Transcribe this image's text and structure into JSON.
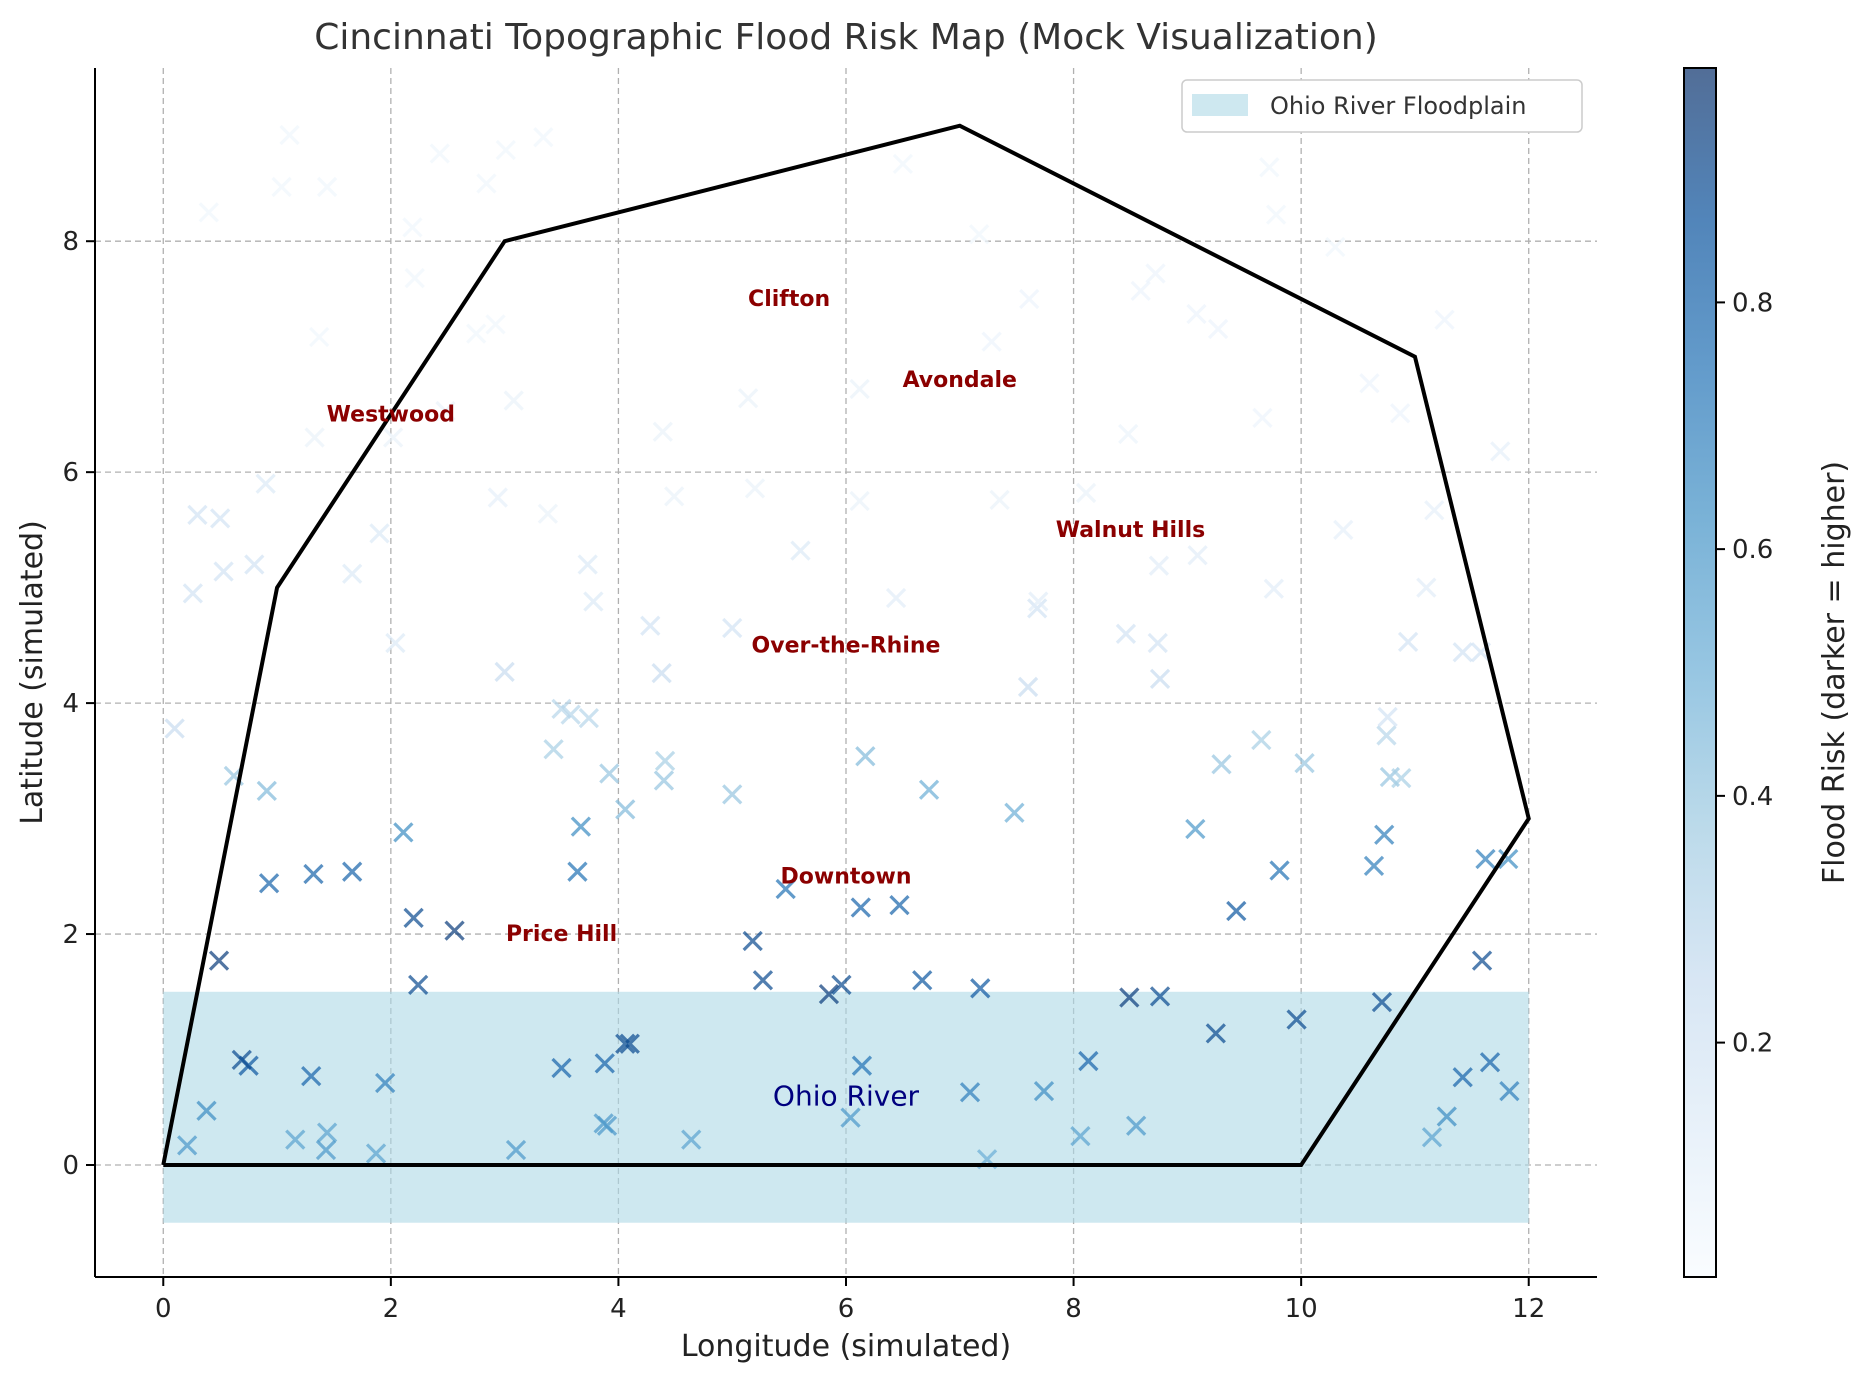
{
  "chart_data": {
    "type": "scatter",
    "title": "Cincinnati Topographic Flood Risk Map (Mock Visualization)",
    "xlabel": "Longitude (simulated)",
    "ylabel": "Latitude (simulated)",
    "xlim": [
      -0.6,
      12.6
    ],
    "ylim": [
      -0.97,
      9.5
    ],
    "xticks": [
      0,
      2,
      4,
      6,
      8,
      10,
      12
    ],
    "yticks": [
      0,
      2,
      4,
      6,
      8
    ],
    "grid": true,
    "legend": {
      "placement": "top-right",
      "entries": [
        {
          "label": "Ohio River Floodplain",
          "color": "#add8e6"
        }
      ]
    },
    "floodplain": {
      "label": "Ohio River Floodplain",
      "x": [
        0,
        12
      ],
      "y": [
        -0.5,
        1.5
      ],
      "color": "#add8e6"
    },
    "boundary": [
      [
        0,
        0
      ],
      [
        1,
        5
      ],
      [
        3,
        8
      ],
      [
        7,
        9
      ],
      [
        11,
        7
      ],
      [
        12,
        3
      ],
      [
        10,
        0
      ],
      [
        0,
        0
      ]
    ],
    "river_label": {
      "text": "Ohio River",
      "x": 6,
      "y": 0.6
    },
    "neighborhoods": [
      {
        "name": "Clifton",
        "x": 5.5,
        "y": 7.5
      },
      {
        "name": "Avondale",
        "x": 7,
        "y": 6.8
      },
      {
        "name": "Westwood",
        "x": 2,
        "y": 6.5
      },
      {
        "name": "Walnut Hills",
        "x": 8.5,
        "y": 5.5
      },
      {
        "name": "Over-the-Rhine",
        "x": 6,
        "y": 4.5
      },
      {
        "name": "Downtown",
        "x": 6,
        "y": 2.5
      },
      {
        "name": "Price Hill",
        "x": 3.5,
        "y": 2
      }
    ],
    "colorbar": {
      "label": "Flood Risk (darker = higher)",
      "range": [
        0.01,
        0.99
      ],
      "ticks": [
        0.2,
        0.4,
        0.6,
        0.8
      ],
      "colormap": "Blues",
      "alpha": 0.7
    },
    "points": [
      [
        0.21,
        0.17,
        0.6
      ],
      [
        0.38,
        0.47,
        0.65
      ],
      [
        0.75,
        0.86,
        0.85
      ],
      [
        0.69,
        0.91,
        0.9
      ],
      [
        1.3,
        0.77,
        0.8
      ],
      [
        1.16,
        0.22,
        0.55
      ],
      [
        1.44,
        0.28,
        0.55
      ],
      [
        1.43,
        0.13,
        0.6
      ],
      [
        1.87,
        0.1,
        0.55
      ],
      [
        1.95,
        0.71,
        0.7
      ],
      [
        3.1,
        0.13,
        0.6
      ],
      [
        3.5,
        0.84,
        0.8
      ],
      [
        3.88,
        0.88,
        0.8
      ],
      [
        3.87,
        0.36,
        0.6
      ],
      [
        3.9,
        0.34,
        0.6
      ],
      [
        4.06,
        1.05,
        0.9
      ],
      [
        4.1,
        1.05,
        0.9
      ],
      [
        4.64,
        0.22,
        0.55
      ],
      [
        6.04,
        0.41,
        0.6
      ],
      [
        6.14,
        0.86,
        0.75
      ],
      [
        5.85,
        1.48,
        0.95
      ],
      [
        5.96,
        1.56,
        0.9
      ],
      [
        5.27,
        1.6,
        0.9
      ],
      [
        5.18,
        1.94,
        0.9
      ],
      [
        5.47,
        2.39,
        0.75
      ],
      [
        6.13,
        2.23,
        0.8
      ],
      [
        6.47,
        2.25,
        0.8
      ],
      [
        6.67,
        1.6,
        0.85
      ],
      [
        7.18,
        1.53,
        0.85
      ],
      [
        7.09,
        0.63,
        0.7
      ],
      [
        7.24,
        0.05,
        0.5
      ],
      [
        7.74,
        0.64,
        0.65
      ],
      [
        8.06,
        0.25,
        0.55
      ],
      [
        8.13,
        0.9,
        0.8
      ],
      [
        8.49,
        1.45,
        0.95
      ],
      [
        8.55,
        0.34,
        0.6
      ],
      [
        8.76,
        1.46,
        0.9
      ],
      [
        9.25,
        1.14,
        0.9
      ],
      [
        9.43,
        2.2,
        0.85
      ],
      [
        9.07,
        2.91,
        0.6
      ],
      [
        9.81,
        2.55,
        0.75
      ],
      [
        9.96,
        1.26,
        0.9
      ],
      [
        10.71,
        1.41,
        0.9
      ],
      [
        10.64,
        2.59,
        0.7
      ],
      [
        10.73,
        2.86,
        0.7
      ],
      [
        11.15,
        0.24,
        0.55
      ],
      [
        11.28,
        0.42,
        0.65
      ],
      [
        11.42,
        0.76,
        0.8
      ],
      [
        11.66,
        0.89,
        0.8
      ],
      [
        11.83,
        0.64,
        0.7
      ],
      [
        11.59,
        1.77,
        0.9
      ],
      [
        11.62,
        2.65,
        0.7
      ],
      [
        11.82,
        2.65,
        0.65
      ],
      [
        0.49,
        1.77,
        0.95
      ],
      [
        0.93,
        2.44,
        0.8
      ],
      [
        1.32,
        2.52,
        0.8
      ],
      [
        1.66,
        2.54,
        0.8
      ],
      [
        2.2,
        2.14,
        0.9
      ],
      [
        2.24,
        1.56,
        0.9
      ],
      [
        2.56,
        2.03,
        0.95
      ],
      [
        2.11,
        2.88,
        0.65
      ],
      [
        3.64,
        2.54,
        0.75
      ],
      [
        3.67,
        2.93,
        0.65
      ],
      [
        0.62,
        3.37,
        0.4
      ],
      [
        0.91,
        3.24,
        0.45
      ],
      [
        3.92,
        3.39,
        0.4
      ],
      [
        4.06,
        3.08,
        0.45
      ],
      [
        4.4,
        3.33,
        0.4
      ],
      [
        4.41,
        3.5,
        0.35
      ],
      [
        5.0,
        3.21,
        0.4
      ],
      [
        6.17,
        3.54,
        0.45
      ],
      [
        6.73,
        3.25,
        0.5
      ],
      [
        7.48,
        3.05,
        0.5
      ],
      [
        9.3,
        3.47,
        0.4
      ],
      [
        9.65,
        3.68,
        0.35
      ],
      [
        10.03,
        3.48,
        0.4
      ],
      [
        10.78,
        3.36,
        0.4
      ],
      [
        10.88,
        3.35,
        0.35
      ],
      [
        10.75,
        3.72,
        0.3
      ],
      [
        0.1,
        3.78,
        0.25
      ],
      [
        3.43,
        3.6,
        0.35
      ],
      [
        3.5,
        3.95,
        0.3
      ],
      [
        3.58,
        3.9,
        0.3
      ],
      [
        3.74,
        3.87,
        0.3
      ],
      [
        3.0,
        4.27,
        0.25
      ],
      [
        4.28,
        4.67,
        0.2
      ],
      [
        4.38,
        4.26,
        0.25
      ],
      [
        5.0,
        4.65,
        0.2
      ],
      [
        7.6,
        4.14,
        0.25
      ],
      [
        7.68,
        4.82,
        0.2
      ],
      [
        8.46,
        4.6,
        0.2
      ],
      [
        8.74,
        4.52,
        0.2
      ],
      [
        8.76,
        4.21,
        0.25
      ],
      [
        10.76,
        3.88,
        0.2
      ],
      [
        10.94,
        4.53,
        0.2
      ],
      [
        11.42,
        4.44,
        0.2
      ],
      [
        11.58,
        4.44,
        0.2
      ],
      [
        0.26,
        4.95,
        0.2
      ],
      [
        0.53,
        5.14,
        0.2
      ],
      [
        0.8,
        5.2,
        0.2
      ],
      [
        0.3,
        5.63,
        0.2
      ],
      [
        0.5,
        5.6,
        0.2
      ],
      [
        0.9,
        5.9,
        0.15
      ],
      [
        1.66,
        5.12,
        0.15
      ],
      [
        1.9,
        5.47,
        0.15
      ],
      [
        2.04,
        4.52,
        0.15
      ],
      [
        3.73,
        5.2,
        0.15
      ],
      [
        3.78,
        4.88,
        0.15
      ],
      [
        5.6,
        5.32,
        0.15
      ],
      [
        6.44,
        4.91,
        0.12
      ],
      [
        7.69,
        4.88,
        0.12
      ],
      [
        8.75,
        5.19,
        0.12
      ],
      [
        9.09,
        5.28,
        0.12
      ],
      [
        9.76,
        4.99,
        0.12
      ],
      [
        10.37,
        5.5,
        0.1
      ],
      [
        11.1,
        5.0,
        0.12
      ],
      [
        11.75,
        6.18,
        0.1
      ],
      [
        11.17,
        5.67,
        0.1
      ],
      [
        1.33,
        6.3,
        0.08
      ],
      [
        2.48,
        6.53,
        0.08
      ],
      [
        3.08,
        6.62,
        0.08
      ],
      [
        4.39,
        6.35,
        0.08
      ],
      [
        5.14,
        6.64,
        0.08
      ],
      [
        6.12,
        6.72,
        0.08
      ],
      [
        7.61,
        7.5,
        0.06
      ],
      [
        7.28,
        7.13,
        0.06
      ],
      [
        8.59,
        7.57,
        0.06
      ],
      [
        8.72,
        7.72,
        0.06
      ],
      [
        9.08,
        7.37,
        0.06
      ],
      [
        9.27,
        7.24,
        0.06
      ],
      [
        9.66,
        6.47,
        0.06
      ],
      [
        10.6,
        6.77,
        0.06
      ],
      [
        10.87,
        6.51,
        0.06
      ],
      [
        11.26,
        7.32,
        0.06
      ],
      [
        1.04,
        8.47,
        0.05
      ],
      [
        1.44,
        8.47,
        0.05
      ],
      [
        2.19,
        8.12,
        0.05
      ],
      [
        2.43,
        8.76,
        0.05
      ],
      [
        2.84,
        8.5,
        0.05
      ],
      [
        3.01,
        8.79,
        0.05
      ],
      [
        3.34,
        8.9,
        0.05
      ],
      [
        1.11,
        8.92,
        0.05
      ],
      [
        0.4,
        8.25,
        0.05
      ],
      [
        9.72,
        8.64,
        0.05
      ],
      [
        9.78,
        8.23,
        0.05
      ],
      [
        6.5,
        8.67,
        0.05
      ],
      [
        7.17,
        8.06,
        0.05
      ],
      [
        10.3,
        7.95,
        0.05
      ],
      [
        2.21,
        7.68,
        0.05
      ],
      [
        1.37,
        7.17,
        0.05
      ],
      [
        2.75,
        7.2,
        0.05
      ],
      [
        2.92,
        7.28,
        0.05
      ],
      [
        3.38,
        5.64,
        0.08
      ],
      [
        4.49,
        5.79,
        0.08
      ],
      [
        5.2,
        5.86,
        0.08
      ],
      [
        6.12,
        5.75,
        0.08
      ],
      [
        7.35,
        5.76,
        0.08
      ],
      [
        8.11,
        5.82,
        0.08
      ],
      [
        8.48,
        6.33,
        0.07
      ],
      [
        2.94,
        5.78,
        0.1
      ],
      [
        2.02,
        6.3,
        0.08
      ]
    ]
  }
}
